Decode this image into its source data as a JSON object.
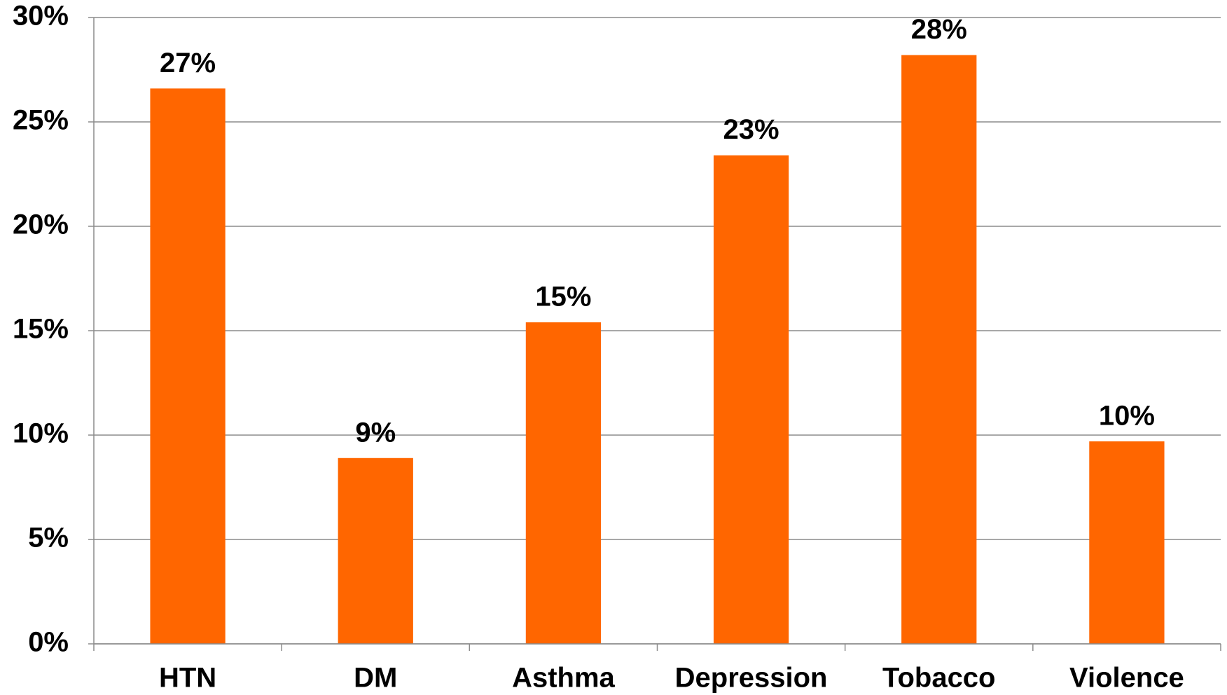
{
  "chart_data": {
    "type": "bar",
    "categories": [
      "HTN",
      "DM",
      "Asthma",
      "Depression",
      "Tobacco",
      "Violence"
    ],
    "values": [
      26.6,
      8.9,
      15.4,
      23.4,
      28.2,
      9.7
    ],
    "value_labels": [
      "27%",
      "9%",
      "15%",
      "23%",
      "28%",
      "10%"
    ],
    "color": "#ff6600",
    "ylim": [
      0,
      30
    ],
    "yticks": [
      {
        "value": 0,
        "label": "0%"
      },
      {
        "value": 5,
        "label": "5%"
      },
      {
        "value": 10,
        "label": "10%"
      },
      {
        "value": 15,
        "label": "15%"
      },
      {
        "value": 20,
        "label": "20%"
      },
      {
        "value": 25,
        "label": "25%"
      },
      {
        "value": 30,
        "label": "30%"
      }
    ],
    "grid": true
  }
}
